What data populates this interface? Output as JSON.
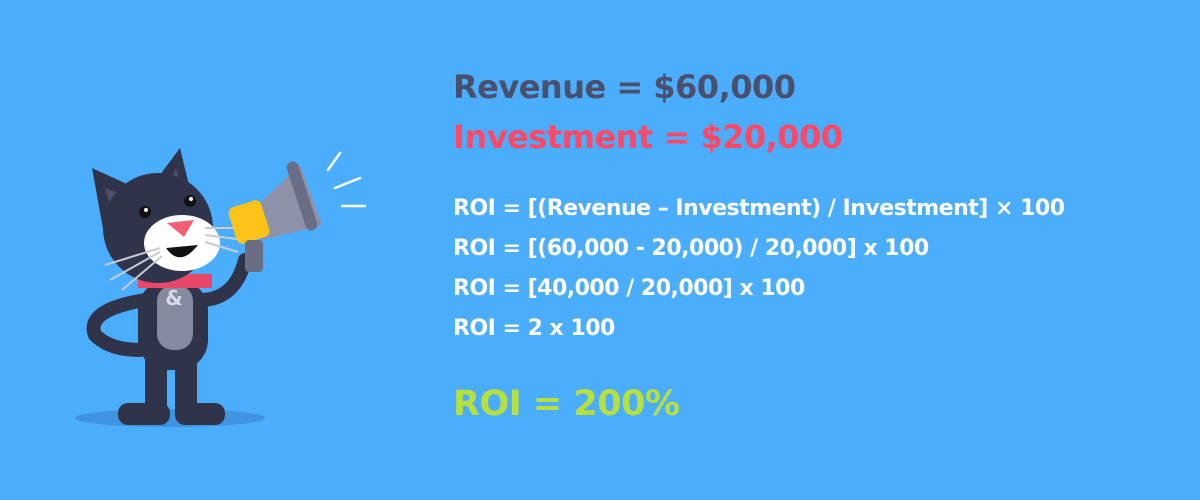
{
  "revenue_line": "Revenue = $60,000",
  "investment_line": "Investment = $20,000",
  "formula_lines": [
    "ROI = [(Revenue – Investment) / Investment] × 100",
    "ROI = [(60,000 - 20,000) / 20,000] x 100",
    "ROI = [40,000 / 20,000] x 100",
    "ROI = 2 x 100"
  ],
  "result_line": "ROI = 200%",
  "colors": {
    "background": "#4badfd",
    "revenue": "#4a4f6b",
    "investment": "#ff4866",
    "formula": "#ffffff",
    "result": "#b8e03c"
  },
  "illustration": {
    "icon": "cat-with-megaphone-icon",
    "chest_symbol": "&"
  }
}
